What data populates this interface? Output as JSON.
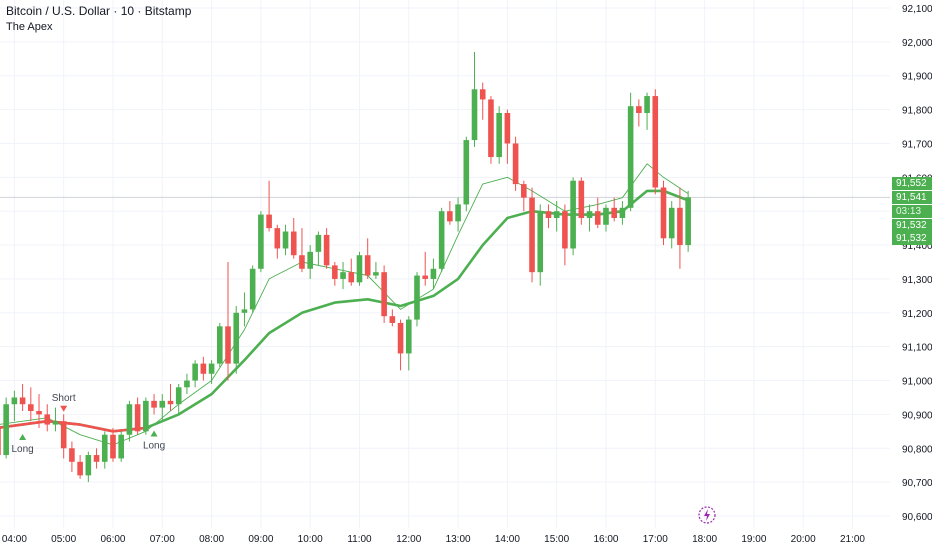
{
  "header": {
    "symbol_title": "Bitcoin / U.S. Dollar · 10 · Bitstamp",
    "indicator_name": "The Apex"
  },
  "price_tags": {
    "last_price": "91,552",
    "current_price": "91,541",
    "countdown": "03:13",
    "line_a": "91,532",
    "line_b": "91,532"
  },
  "signals": {
    "long_1": "Long",
    "short_1": "Short",
    "long_2": "Long"
  },
  "icons": {
    "live": "lightning-icon"
  },
  "colors": {
    "up": "#4caf50",
    "down": "#ef5350",
    "ma_fast": "#4caf50",
    "ma_slow": "#4caf50",
    "grid": "#f0f3fa",
    "axis_text": "#131722",
    "live_icon": "#9c27b0"
  },
  "chart_data": {
    "type": "candlestick",
    "interval_minutes": 10,
    "y_range": [
      90580,
      92110
    ],
    "x_range": [
      "03:40",
      "21:30"
    ],
    "y_ticks": [
      90600,
      90700,
      90800,
      90900,
      91000,
      91100,
      91200,
      91300,
      91400,
      91500,
      91600,
      91700,
      91800,
      91900,
      92000,
      92100
    ],
    "y_tick_labels": [
      "90,600",
      "90,700",
      "90,800",
      "90,900",
      "91,000",
      "91,100",
      "91,200",
      "91,300",
      "91,400",
      "91,500",
      "91,600",
      "91,700",
      "91,800",
      "91,900",
      "92,000",
      "92,100"
    ],
    "x_ticks": [
      "04:00",
      "05:00",
      "06:00",
      "07:00",
      "08:00",
      "09:00",
      "10:00",
      "11:00",
      "12:00",
      "13:00",
      "14:00",
      "15:00",
      "16:00",
      "17:00",
      "18:00",
      "19:00",
      "20:00",
      "21:00"
    ],
    "candles": [
      {
        "t": "03:40",
        "o": 90860,
        "h": 90900,
        "l": 90770,
        "c": 90780
      },
      {
        "t": "03:50",
        "o": 90780,
        "h": 90950,
        "l": 90770,
        "c": 90930
      },
      {
        "t": "04:00",
        "o": 90930,
        "h": 90970,
        "l": 90880,
        "c": 90950
      },
      {
        "t": "04:10",
        "o": 90950,
        "h": 90990,
        "l": 90910,
        "c": 90930
      },
      {
        "t": "04:20",
        "o": 90930,
        "h": 90980,
        "l": 90880,
        "c": 90910
      },
      {
        "t": "04:30",
        "o": 90910,
        "h": 90960,
        "l": 90860,
        "c": 90900
      },
      {
        "t": "04:40",
        "o": 90900,
        "h": 90930,
        "l": 90850,
        "c": 90870
      },
      {
        "t": "04:50",
        "o": 90870,
        "h": 90920,
        "l": 90850,
        "c": 90880
      },
      {
        "t": "05:00",
        "o": 90880,
        "h": 90900,
        "l": 90770,
        "c": 90800
      },
      {
        "t": "05:10",
        "o": 90800,
        "h": 90820,
        "l": 90730,
        "c": 90760
      },
      {
        "t": "05:20",
        "o": 90760,
        "h": 90780,
        "l": 90710,
        "c": 90720
      },
      {
        "t": "05:30",
        "o": 90720,
        "h": 90790,
        "l": 90700,
        "c": 90780
      },
      {
        "t": "05:40",
        "o": 90780,
        "h": 90800,
        "l": 90740,
        "c": 90760
      },
      {
        "t": "05:50",
        "o": 90760,
        "h": 90850,
        "l": 90740,
        "c": 90840
      },
      {
        "t": "06:00",
        "o": 90840,
        "h": 90860,
        "l": 90760,
        "c": 90770
      },
      {
        "t": "06:10",
        "o": 90770,
        "h": 90850,
        "l": 90760,
        "c": 90840
      },
      {
        "t": "06:20",
        "o": 90840,
        "h": 90940,
        "l": 90820,
        "c": 90930
      },
      {
        "t": "06:30",
        "o": 90930,
        "h": 90950,
        "l": 90840,
        "c": 90850
      },
      {
        "t": "06:40",
        "o": 90850,
        "h": 90950,
        "l": 90840,
        "c": 90940
      },
      {
        "t": "06:50",
        "o": 90940,
        "h": 90960,
        "l": 90900,
        "c": 90920
      },
      {
        "t": "07:00",
        "o": 90920,
        "h": 90960,
        "l": 90880,
        "c": 90940
      },
      {
        "t": "07:10",
        "o": 90940,
        "h": 90990,
        "l": 90910,
        "c": 90930
      },
      {
        "t": "07:20",
        "o": 90930,
        "h": 90990,
        "l": 90900,
        "c": 90980
      },
      {
        "t": "07:30",
        "o": 90980,
        "h": 91020,
        "l": 90960,
        "c": 91000
      },
      {
        "t": "07:40",
        "o": 91000,
        "h": 91060,
        "l": 90980,
        "c": 91050
      },
      {
        "t": "07:50",
        "o": 91050,
        "h": 91070,
        "l": 91000,
        "c": 91020
      },
      {
        "t": "08:00",
        "o": 91020,
        "h": 91060,
        "l": 90990,
        "c": 91050
      },
      {
        "t": "08:10",
        "o": 91050,
        "h": 91170,
        "l": 91040,
        "c": 91160
      },
      {
        "t": "08:20",
        "o": 91160,
        "h": 91350,
        "l": 91000,
        "c": 91050
      },
      {
        "t": "08:30",
        "o": 91050,
        "h": 91220,
        "l": 91020,
        "c": 91200
      },
      {
        "t": "08:40",
        "o": 91200,
        "h": 91260,
        "l": 91160,
        "c": 91210
      },
      {
        "t": "08:50",
        "o": 91210,
        "h": 91340,
        "l": 91200,
        "c": 91330
      },
      {
        "t": "09:00",
        "o": 91330,
        "h": 91500,
        "l": 91320,
        "c": 91490
      },
      {
        "t": "09:10",
        "o": 91490,
        "h": 91590,
        "l": 91440,
        "c": 91450
      },
      {
        "t": "09:20",
        "o": 91450,
        "h": 91460,
        "l": 91360,
        "c": 91390
      },
      {
        "t": "09:30",
        "o": 91390,
        "h": 91460,
        "l": 91370,
        "c": 91440
      },
      {
        "t": "09:40",
        "o": 91440,
        "h": 91480,
        "l": 91360,
        "c": 91370
      },
      {
        "t": "09:50",
        "o": 91370,
        "h": 91450,
        "l": 91320,
        "c": 91330
      },
      {
        "t": "10:00",
        "o": 91330,
        "h": 91400,
        "l": 91300,
        "c": 91380
      },
      {
        "t": "10:10",
        "o": 91380,
        "h": 91440,
        "l": 91340,
        "c": 91430
      },
      {
        "t": "10:20",
        "o": 91430,
        "h": 91450,
        "l": 91330,
        "c": 91340
      },
      {
        "t": "10:30",
        "o": 91340,
        "h": 91350,
        "l": 91280,
        "c": 91300
      },
      {
        "t": "10:40",
        "o": 91300,
        "h": 91350,
        "l": 91270,
        "c": 91320
      },
      {
        "t": "10:50",
        "o": 91320,
        "h": 91360,
        "l": 91280,
        "c": 91290
      },
      {
        "t": "11:00",
        "o": 91290,
        "h": 91380,
        "l": 91280,
        "c": 91370
      },
      {
        "t": "11:10",
        "o": 91370,
        "h": 91420,
        "l": 91300,
        "c": 91310
      },
      {
        "t": "11:20",
        "o": 91310,
        "h": 91350,
        "l": 91300,
        "c": 91320
      },
      {
        "t": "11:30",
        "o": 91320,
        "h": 91340,
        "l": 91170,
        "c": 91190
      },
      {
        "t": "11:40",
        "o": 91190,
        "h": 91210,
        "l": 91160,
        "c": 91170
      },
      {
        "t": "11:50",
        "o": 91170,
        "h": 91180,
        "l": 91030,
        "c": 91080
      },
      {
        "t": "12:00",
        "o": 91080,
        "h": 91190,
        "l": 91030,
        "c": 91180
      },
      {
        "t": "12:10",
        "o": 91180,
        "h": 91320,
        "l": 91160,
        "c": 91310
      },
      {
        "t": "12:20",
        "o": 91310,
        "h": 91380,
        "l": 91280,
        "c": 91300
      },
      {
        "t": "12:30",
        "o": 91300,
        "h": 91360,
        "l": 91270,
        "c": 91330
      },
      {
        "t": "12:40",
        "o": 91330,
        "h": 91510,
        "l": 91320,
        "c": 91500
      },
      {
        "t": "12:50",
        "o": 91500,
        "h": 91530,
        "l": 91460,
        "c": 91470
      },
      {
        "t": "13:00",
        "o": 91470,
        "h": 91540,
        "l": 91440,
        "c": 91520
      },
      {
        "t": "13:10",
        "o": 91520,
        "h": 91720,
        "l": 91500,
        "c": 91710
      },
      {
        "t": "13:20",
        "o": 91710,
        "h": 91970,
        "l": 91690,
        "c": 91860
      },
      {
        "t": "13:30",
        "o": 91860,
        "h": 91880,
        "l": 91770,
        "c": 91830
      },
      {
        "t": "13:40",
        "o": 91830,
        "h": 91840,
        "l": 91640,
        "c": 91660
      },
      {
        "t": "13:50",
        "o": 91660,
        "h": 91810,
        "l": 91640,
        "c": 91790
      },
      {
        "t": "14:00",
        "o": 91790,
        "h": 91800,
        "l": 91640,
        "c": 91700
      },
      {
        "t": "14:10",
        "o": 91700,
        "h": 91720,
        "l": 91560,
        "c": 91580
      },
      {
        "t": "14:20",
        "o": 91580,
        "h": 91590,
        "l": 91500,
        "c": 91540
      },
      {
        "t": "14:30",
        "o": 91540,
        "h": 91570,
        "l": 91290,
        "c": 91320
      },
      {
        "t": "14:40",
        "o": 91320,
        "h": 91520,
        "l": 91280,
        "c": 91500
      },
      {
        "t": "14:50",
        "o": 91500,
        "h": 91520,
        "l": 91450,
        "c": 91480
      },
      {
        "t": "15:00",
        "o": 91480,
        "h": 91530,
        "l": 91440,
        "c": 91500
      },
      {
        "t": "15:10",
        "o": 91500,
        "h": 91520,
        "l": 91340,
        "c": 91390
      },
      {
        "t": "15:20",
        "o": 91390,
        "h": 91600,
        "l": 91370,
        "c": 91590
      },
      {
        "t": "15:30",
        "o": 91590,
        "h": 91600,
        "l": 91460,
        "c": 91480
      },
      {
        "t": "15:40",
        "o": 91480,
        "h": 91520,
        "l": 91440,
        "c": 91500
      },
      {
        "t": "15:50",
        "o": 91500,
        "h": 91540,
        "l": 91450,
        "c": 91460
      },
      {
        "t": "16:00",
        "o": 91460,
        "h": 91520,
        "l": 91440,
        "c": 91510
      },
      {
        "t": "16:10",
        "o": 91510,
        "h": 91540,
        "l": 91470,
        "c": 91480
      },
      {
        "t": "16:20",
        "o": 91480,
        "h": 91530,
        "l": 91460,
        "c": 91510
      },
      {
        "t": "16:30",
        "o": 91510,
        "h": 91850,
        "l": 91500,
        "c": 91810
      },
      {
        "t": "16:40",
        "o": 91810,
        "h": 91830,
        "l": 91750,
        "c": 91790
      },
      {
        "t": "16:50",
        "o": 91790,
        "h": 91850,
        "l": 91740,
        "c": 91840
      },
      {
        "t": "17:00",
        "o": 91840,
        "h": 91860,
        "l": 91550,
        "c": 91570
      },
      {
        "t": "17:10",
        "o": 91570,
        "h": 91590,
        "l": 91400,
        "c": 91420
      },
      {
        "t": "17:20",
        "o": 91420,
        "h": 91530,
        "l": 91390,
        "c": 91510
      },
      {
        "t": "17:30",
        "o": 91510,
        "h": 91570,
        "l": 91330,
        "c": 91400
      },
      {
        "t": "17:40",
        "o": 91400,
        "h": 91560,
        "l": 91380,
        "c": 91541
      }
    ],
    "ma_fast": [
      {
        "t": "03:40",
        "v": 90870
      },
      {
        "t": "04:40",
        "v": 90890
      },
      {
        "t": "05:20",
        "v": 90840
      },
      {
        "t": "06:00",
        "v": 90810
      },
      {
        "t": "06:40",
        "v": 90850
      },
      {
        "t": "07:20",
        "v": 90930
      },
      {
        "t": "08:00",
        "v": 91000
      },
      {
        "t": "08:40",
        "v": 91150
      },
      {
        "t": "09:10",
        "v": 91300
      },
      {
        "t": "09:50",
        "v": 91350
      },
      {
        "t": "10:30",
        "v": 91330
      },
      {
        "t": "11:10",
        "v": 91310
      },
      {
        "t": "11:50",
        "v": 91210
      },
      {
        "t": "12:30",
        "v": 91270
      },
      {
        "t": "13:00",
        "v": 91430
      },
      {
        "t": "13:30",
        "v": 91580
      },
      {
        "t": "14:00",
        "v": 91600
      },
      {
        "t": "14:30",
        "v": 91560
      },
      {
        "t": "15:10",
        "v": 91500
      },
      {
        "t": "15:50",
        "v": 91520
      },
      {
        "t": "16:20",
        "v": 91540
      },
      {
        "t": "16:50",
        "v": 91640
      },
      {
        "t": "17:10",
        "v": 91600
      },
      {
        "t": "17:40",
        "v": 91552
      }
    ],
    "ma_slow": [
      {
        "t": "03:40",
        "v": 90860
      },
      {
        "t": "04:40",
        "v": 90880
      },
      {
        "t": "05:20",
        "v": 90870
      },
      {
        "t": "06:00",
        "v": 90850
      },
      {
        "t": "06:40",
        "v": 90860
      },
      {
        "t": "07:20",
        "v": 90900
      },
      {
        "t": "08:00",
        "v": 90960
      },
      {
        "t": "08:40",
        "v": 91060
      },
      {
        "t": "09:10",
        "v": 91140
      },
      {
        "t": "09:50",
        "v": 91200
      },
      {
        "t": "10:30",
        "v": 91230
      },
      {
        "t": "11:10",
        "v": 91240
      },
      {
        "t": "11:50",
        "v": 91220
      },
      {
        "t": "12:30",
        "v": 91250
      },
      {
        "t": "13:00",
        "v": 91300
      },
      {
        "t": "13:30",
        "v": 91400
      },
      {
        "t": "14:00",
        "v": 91480
      },
      {
        "t": "14:30",
        "v": 91500
      },
      {
        "t": "15:10",
        "v": 91490
      },
      {
        "t": "15:50",
        "v": 91490
      },
      {
        "t": "16:20",
        "v": 91500
      },
      {
        "t": "16:50",
        "v": 91560
      },
      {
        "t": "17:10",
        "v": 91560
      },
      {
        "t": "17:40",
        "v": 91532
      }
    ],
    "ma_red_segment_end": "06:40",
    "markers": [
      {
        "t": "04:10",
        "price": 90860,
        "side": "below",
        "direction": "up",
        "label_key": "long_1"
      },
      {
        "t": "05:00",
        "price": 90890,
        "side": "above",
        "direction": "down",
        "label_key": "short_1"
      },
      {
        "t": "06:50",
        "price": 90870,
        "side": "below",
        "direction": "up",
        "label_key": "long_2"
      }
    ]
  }
}
